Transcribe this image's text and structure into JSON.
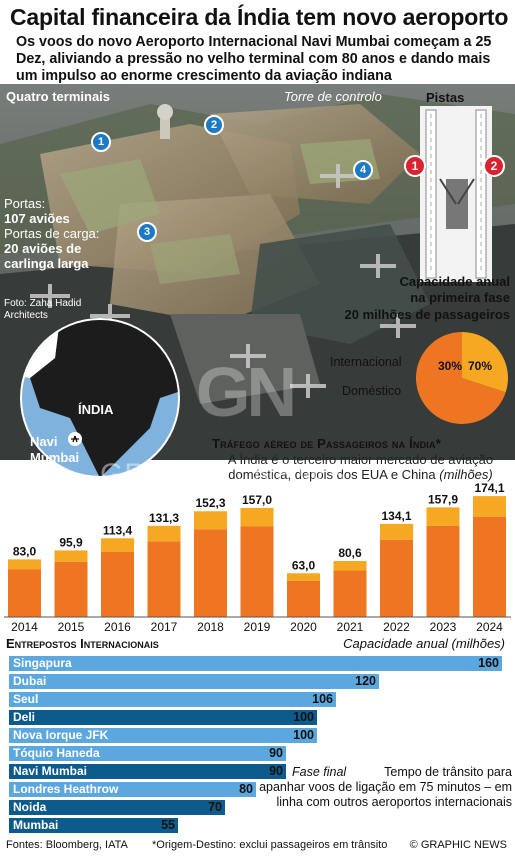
{
  "header": {
    "title": "Capital financeira da Índia tem novo aeroporto",
    "subtitle": "Os voos do novo Aeroporto Internacional Navi Mumbai começam a 25 Dez, aliviando a pressão no velho terminal com 80 anos e dando mais um impulso ao enorme crescimento da aviação indiana"
  },
  "photo": {
    "four_terminals": "Quatro terminais",
    "control_tower": "Torre de controlo",
    "runways": "Pistas",
    "callouts": [
      "1",
      "2",
      "3",
      "4"
    ],
    "runway_callouts": [
      "1",
      "2"
    ],
    "gates_label": "Portas:",
    "gates_value": "107 aviões",
    "cargo_label": "Portas de carga:",
    "cargo_value": "20 aviões de carlinga larga",
    "photo_credit": "Foto: Zaha Hadid Architects",
    "capacity_label": "Capacidade anual na primeira fase",
    "capacity_value": "20 milhões de passageiros",
    "watermark": "GN"
  },
  "map": {
    "country": "ÍNDIA",
    "city": "Navi Mumbai"
  },
  "pie": {
    "international_label": "Internacional",
    "domestic_label": "Doméstico",
    "international_pct": "30%",
    "domestic_pct": "70%",
    "international_value": 30,
    "domestic_value": 70,
    "colors": {
      "international": "#f7a823",
      "domestic": "#ee7623"
    }
  },
  "chart_data": [
    {
      "type": "bar",
      "title": "Tráfego aéreo de Passageiros na Índia*",
      "note": "A Índia é o terceiro maior mercado de aviação doméstica, depois dos EUA e China",
      "unit": "(milhões)",
      "categories": [
        "2014",
        "2015",
        "2016",
        "2017",
        "2018",
        "2019",
        "2020",
        "2021",
        "2022",
        "2023",
        "2024"
      ],
      "values": [
        83.0,
        95.9,
        113.4,
        131.3,
        152.3,
        157.0,
        63.0,
        80.6,
        134.1,
        157.9,
        174.1
      ],
      "value_labels": [
        "83,0",
        "95,9",
        "113,4",
        "131,3",
        "152,3",
        "157,0",
        "63,0",
        "80,6",
        "134,1",
        "157,9",
        "174,1"
      ],
      "series": [
        {
          "values": [
            68.9,
            79.6,
            94.1,
            109.0,
            126.4,
            130.3,
            52.3,
            66.9,
            111.3,
            131.1,
            144.5
          ]
        },
        {
          "values": [
            14.1,
            16.3,
            19.3,
            22.3,
            25.9,
            26.7,
            10.7,
            13.7,
            22.8,
            26.8,
            29.6
          ]
        }
      ],
      "colors": {
        "lower": "#ee7623",
        "upper": "#f7a823"
      },
      "ylim": [
        0,
        180
      ]
    },
    {
      "type": "bar",
      "title": "Entrepostos Internacionais",
      "ylabel": "Capacidade anual (milhões)",
      "categories": [
        "Singapura",
        "Dubai",
        "Seul",
        "Deli",
        "Nova Iorque JFK",
        "Tóquio Haneda",
        "Navi Mumbai",
        "Londres Heathrow",
        "Noida",
        "Mumbai"
      ],
      "values": [
        160,
        120,
        106,
        100,
        100,
        90,
        90,
        80,
        70,
        55
      ],
      "xlim": [
        0,
        160
      ],
      "highlight_colors": [
        "#5ba7de",
        "#5ba7de",
        "#5ba7de",
        "#0d5a8c",
        "#5ba7de",
        "#5ba7de",
        "#0d5a8c",
        "#5ba7de",
        "#0d5a8c",
        "#0d5a8c"
      ]
    }
  ],
  "notes": {
    "phase": "Fase final",
    "transit": "Tempo de trânsito para apanhar voos de ligação em 75 minutos – em linha com outros aeroportos internacionais"
  },
  "footer": {
    "sources": "Fontes: Bloomberg, IATA",
    "footnote": "*Origem-Destino: exclui passageiros em trânsito",
    "brand": "© GRAPHIC NEWS",
    "brand_watermark": "GRAPHIC NEWS"
  }
}
